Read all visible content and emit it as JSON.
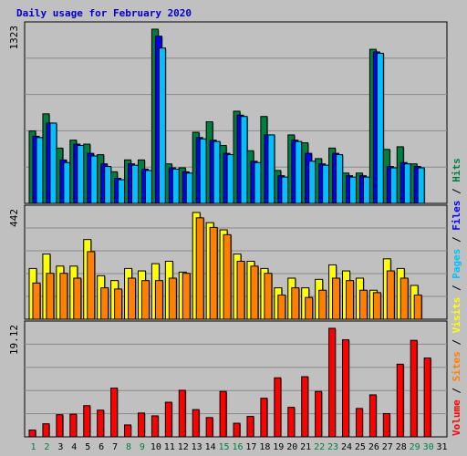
{
  "page_title": "Daily usage for February 2020",
  "colors": {
    "background": "#c0c0c0",
    "plot_bg": "#c0c0c0",
    "grid": "#8a8a8a",
    "title": "#0000cc",
    "hits": "#008040",
    "files": "#0000ff",
    "pages": "#00c0ff",
    "visits": "#ffff00",
    "sites": "#ff8000",
    "volume": "#ff0000",
    "weekend_label": "#008040",
    "weekday_label": "#000000"
  },
  "chart_data": {
    "type": "bar",
    "title": "Daily usage for February 2020",
    "days": [
      "1",
      "2",
      "3",
      "4",
      "5",
      "6",
      "7",
      "8",
      "9",
      "10",
      "11",
      "12",
      "13",
      "14",
      "15",
      "16",
      "17",
      "18",
      "19",
      "20",
      "21",
      "22",
      "23",
      "24",
      "25",
      "26",
      "27",
      "28",
      "29",
      "30",
      "31"
    ],
    "weekend_days": [
      "1",
      "2",
      "8",
      "9",
      "15",
      "16",
      "22",
      "23",
      "29",
      "30"
    ],
    "panels": [
      {
        "name": "hits-files-pages",
        "axis_max_label": "1323",
        "ymax": 1323,
        "series": [
          {
            "name": "Hits",
            "color": "#008040",
            "values": [
              550,
              680,
              420,
              480,
              450,
              370,
              240,
              330,
              330,
              1323,
              300,
              270,
              540,
              620,
              440,
              700,
              400,
              660,
              250,
              520,
              460,
              340,
              420,
              230,
              230,
              1170,
              410,
              430,
              300,
              0,
              0
            ]
          },
          {
            "name": "Files",
            "color": "#0000ff",
            "values": [
              510,
              610,
              330,
              450,
              380,
              300,
              190,
              300,
              260,
              1270,
              270,
              240,
              500,
              480,
              380,
              670,
              320,
              520,
              210,
              480,
              380,
              300,
              380,
              210,
              210,
              1150,
              280,
              310,
              280,
              0,
              0
            ]
          },
          {
            "name": "Pages",
            "color": "#00c0ff",
            "values": [
              500,
              610,
              310,
              440,
              360,
              280,
              180,
              290,
              250,
              1180,
              260,
              230,
              490,
              470,
              370,
              660,
              310,
              520,
              200,
              470,
              320,
              290,
              370,
              200,
              200,
              1140,
              270,
              300,
              270,
              0,
              0
            ]
          }
        ]
      },
      {
        "name": "visits-sites",
        "axis_max_label": "442",
        "ymax": 442,
        "series": [
          {
            "name": "Visits",
            "color": "#ffff00",
            "values": [
              210,
              270,
              220,
              220,
              330,
              180,
              160,
              210,
              200,
              230,
              240,
              195,
              442,
              400,
              370,
              270,
              240,
              210,
              130,
              170,
              130,
              165,
              225,
              200,
              170,
              120,
              250,
              210,
              140,
              0,
              0
            ]
          },
          {
            "name": "Sites",
            "color": "#ff8000",
            "values": [
              150,
              190,
              190,
              170,
              280,
              130,
              125,
              170,
              160,
              160,
              170,
              190,
              420,
              380,
              350,
              240,
              220,
              190,
              100,
              130,
              90,
              120,
              170,
              160,
              120,
              110,
              200,
              170,
              100,
              0,
              0
            ]
          }
        ]
      },
      {
        "name": "volume",
        "axis_max_label": "19.12",
        "ymax": 19.12,
        "series": [
          {
            "name": "Volume",
            "color": "#ff0000",
            "values": [
              1.2,
              2.3,
              3.9,
              4.0,
              5.5,
              4.7,
              8.6,
              2.1,
              4.2,
              3.7,
              6.1,
              8.2,
              4.8,
              3.4,
              8.0,
              2.4,
              3.6,
              6.8,
              10.4,
              5.2,
              10.6,
              8.0,
              19.12,
              17.1,
              5.0,
              7.4,
              4.1,
              12.8,
              17.0,
              13.9,
              0
            ]
          }
        ]
      }
    ],
    "legend": [
      "Volume",
      "Sites",
      "Visits",
      "Pages",
      "Files",
      "Hits"
    ],
    "legend_separator": "/"
  }
}
